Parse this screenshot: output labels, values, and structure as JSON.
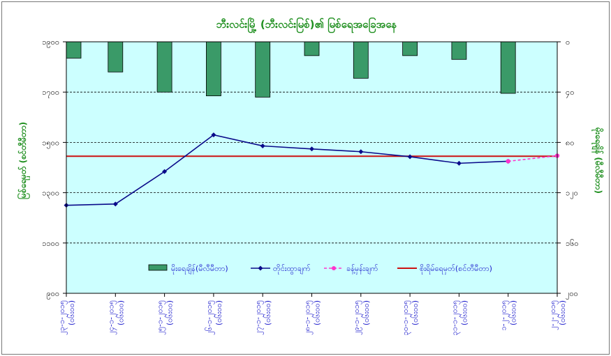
{
  "chart_data": {
    "type": "bar+line",
    "title": "ဘီးလင်းမြို့ (ဘီးလင်းမြစ်)၏ မြစ်ရေအခြေအနေ",
    "ylabel_left": "မြစ်ရေမှတ် (စင်တီမီတာ)",
    "ylabel_right": "မိုးရေချိန် (မီလီမီတာ)",
    "left_axis": {
      "min": 900,
      "max": 1900,
      "step": 200,
      "tick_labels": [
        "၉၀၀",
        "၁၁၀၀",
        "၁၃၀၀",
        "၁၅၀၀",
        "၁၇၀၀",
        "၁၉၀၀"
      ]
    },
    "right_axis": {
      "min": 0,
      "max": 200,
      "step": 40,
      "reversed": true,
      "tick_labels": [
        "၀",
        "၄၀",
        "၈၀",
        "၁၂၀",
        "၁၆၀",
        "၂၀၀"
      ]
    },
    "categories": [
      [
        "၂၃-၁-၂၀၁၅",
        "(၀၆း၀၀)"
      ],
      [
        "၂၄-၁-၂၀၁၅",
        "(၀၆း၀၀)"
      ],
      [
        "၂၅-၁-၂၀၁၅",
        "(၀၆း၀၀)"
      ],
      [
        "၂၆-၁-၂၀၁၅",
        "(၀၆း၀၀)"
      ],
      [
        "၂၇-၁-၂၀၁၅",
        "(၀၆း၀၀)"
      ],
      [
        "၂၈-၁-၂၀၁၅",
        "(၀၆း၀၀)"
      ],
      [
        "၂၉-၁-၂၀၁၅",
        "(၀၆း၀၀)"
      ],
      [
        "၃၀-၁-၂၀၁၅",
        "(၀၆း၀၀)"
      ],
      [
        "၃၁-၁-၂၀၁၅",
        "(၀၆း၀၀)"
      ],
      [
        "၁-၂-၂၀၁၅",
        "(၀၆း၀၀)"
      ],
      [
        "၂-၂-၂၀၁၅",
        "(၀၆း၀၀)"
      ]
    ],
    "series": [
      {
        "name": "မိုးရေချိန်(မီလီမီတာ)",
        "kind": "bar",
        "axis": "right",
        "color": "#3a9a68",
        "values": [
          13,
          24,
          40,
          43,
          44,
          11,
          29,
          11,
          14,
          41,
          null
        ]
      },
      {
        "name": "တိုင်းထွာချက်",
        "kind": "line",
        "axis": "left",
        "color": "#0a0a8a",
        "values": [
          1250,
          1255,
          1384,
          1530,
          1486,
          1474,
          1463,
          1443,
          1417,
          1425,
          null
        ]
      },
      {
        "name": "ခန့်မှန်းချက်",
        "kind": "dashed-line",
        "axis": "left",
        "color": "#ff33cc",
        "values": [
          null,
          null,
          null,
          null,
          null,
          null,
          null,
          null,
          null,
          1425,
          1447
        ]
      },
      {
        "name": "စိုးရိမ်ရေမှတ်(စင်တီမီတာ)",
        "kind": "hline",
        "axis": "left",
        "color": "#cc1111",
        "value": 1445
      }
    ],
    "grid": true,
    "legend_position": "bottom-inside",
    "plot_background": "#ccffff"
  }
}
